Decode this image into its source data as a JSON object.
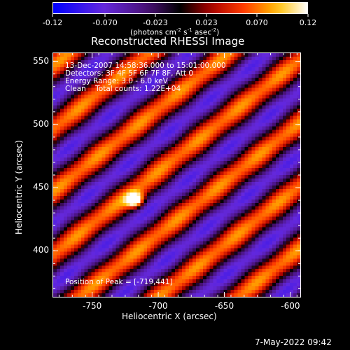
{
  "colorbar": {
    "ticks": [
      "-0.12",
      "-0.070",
      "-0.023",
      "0.023",
      "0.070",
      "0.12"
    ],
    "units_label_main": "(photons cm",
    "units_exp1": "-2",
    "units_s": " s",
    "units_exp2": "-1",
    "units_asec": " asec",
    "units_exp3": "-2",
    "units_close": ")"
  },
  "image": {
    "title": "Reconstructed RHESSI Image",
    "time_range": "13-Dec-2007 14:58:36.000 to 15:01:00.000",
    "detectors": "Detectors: 3F 4F 5F 6F 7F 8F, Att 0",
    "energy": "Energy Range: 3.0 - 6.0 keV",
    "method": "Clean    Total counts: 1.22E+04",
    "peak": "Position of Peak = [-719,441]",
    "x_label": "Heliocentric X (arcsec)",
    "y_label": "Heliocentric Y (arcsec)",
    "x_ticks": [
      "-750",
      "-700",
      "-650",
      "-600"
    ],
    "y_ticks": [
      "550",
      "500",
      "450",
      "400"
    ],
    "xlim": [
      -780,
      -592
    ],
    "ylim": [
      363,
      557
    ],
    "colormap": "red-temperature"
  },
  "footer": {
    "date": "7-May-2022 09:42"
  }
}
